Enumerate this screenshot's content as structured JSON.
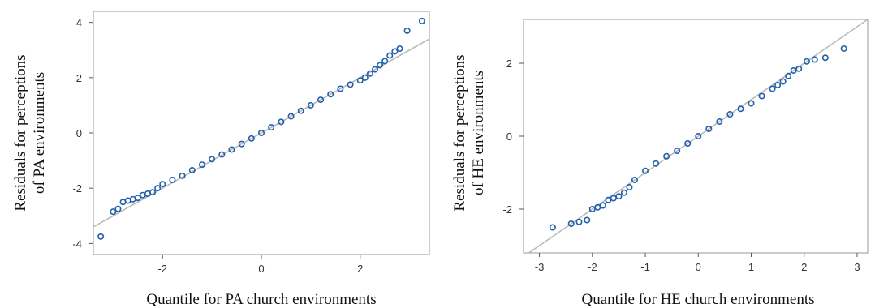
{
  "chart_data": [
    {
      "type": "scatter",
      "xlabel": "Quantile for PA church environments",
      "ylabel_line1": "Residuals for perceptions",
      "ylabel_line2": "of PA environments",
      "xlim": [
        -3.4,
        3.4
      ],
      "ylim": [
        -4.4,
        4.4
      ],
      "xticks": [
        -2,
        0,
        2
      ],
      "yticks": [
        -4,
        -2,
        0,
        2,
        4
      ],
      "grid": false,
      "point_color": "#1f5fb4",
      "reference_line": {
        "slope": 1.0,
        "intercept": 0.0
      },
      "series": [
        {
          "x": [
            -3.25,
            -3.0,
            -2.9,
            -2.8,
            -2.7,
            -2.6,
            -2.5,
            -2.4,
            -2.3,
            -2.2,
            -2.1,
            -2.0,
            -1.8,
            -1.6,
            -1.4,
            -1.2,
            -1.0,
            -0.8,
            -0.6,
            -0.4,
            -0.2,
            0.0,
            0.2,
            0.4,
            0.6,
            0.8,
            1.0,
            1.2,
            1.4,
            1.6,
            1.8,
            2.0,
            2.1,
            2.2,
            2.3,
            2.4,
            2.5,
            2.6,
            2.7,
            2.8,
            2.95,
            3.25
          ],
          "y": [
            -3.75,
            -2.85,
            -2.75,
            -2.5,
            -2.45,
            -2.4,
            -2.35,
            -2.25,
            -2.2,
            -2.15,
            -2.0,
            -1.85,
            -1.7,
            -1.55,
            -1.35,
            -1.15,
            -0.95,
            -0.78,
            -0.6,
            -0.4,
            -0.2,
            0.0,
            0.2,
            0.4,
            0.6,
            0.8,
            1.0,
            1.2,
            1.4,
            1.6,
            1.75,
            1.9,
            2.0,
            2.15,
            2.3,
            2.45,
            2.6,
            2.8,
            2.95,
            3.05,
            3.7,
            4.05
          ]
        }
      ]
    },
    {
      "type": "scatter",
      "xlabel": "Quantile for HE church environments",
      "ylabel_line1": "Residuals for perceptions",
      "ylabel_line2": "of HE environments",
      "xlim": [
        -3.3,
        3.2
      ],
      "ylim": [
        -3.2,
        3.2
      ],
      "xticks": [
        -3,
        -2,
        -1,
        0,
        1,
        2,
        3
      ],
      "yticks": [
        -2,
        0,
        2
      ],
      "grid": false,
      "point_color": "#1f5fb4",
      "reference_line": {
        "slope": 1.0,
        "intercept": 0.0
      },
      "series": [
        {
          "x": [
            -2.75,
            -2.4,
            -2.25,
            -2.1,
            -2.0,
            -1.9,
            -1.8,
            -1.7,
            -1.6,
            -1.5,
            -1.4,
            -1.3,
            -1.2,
            -1.0,
            -0.8,
            -0.6,
            -0.4,
            -0.2,
            0.0,
            0.2,
            0.4,
            0.6,
            0.8,
            1.0,
            1.2,
            1.4,
            1.5,
            1.6,
            1.7,
            1.8,
            1.9,
            2.05,
            2.2,
            2.4,
            2.75
          ],
          "y": [
            -2.5,
            -2.4,
            -2.35,
            -2.3,
            -2.0,
            -1.95,
            -1.9,
            -1.75,
            -1.7,
            -1.65,
            -1.55,
            -1.4,
            -1.2,
            -0.95,
            -0.75,
            -0.55,
            -0.4,
            -0.2,
            0.0,
            0.2,
            0.4,
            0.6,
            0.75,
            0.9,
            1.1,
            1.3,
            1.4,
            1.5,
            1.65,
            1.8,
            1.85,
            2.05,
            2.1,
            2.15,
            2.4
          ]
        }
      ]
    }
  ]
}
